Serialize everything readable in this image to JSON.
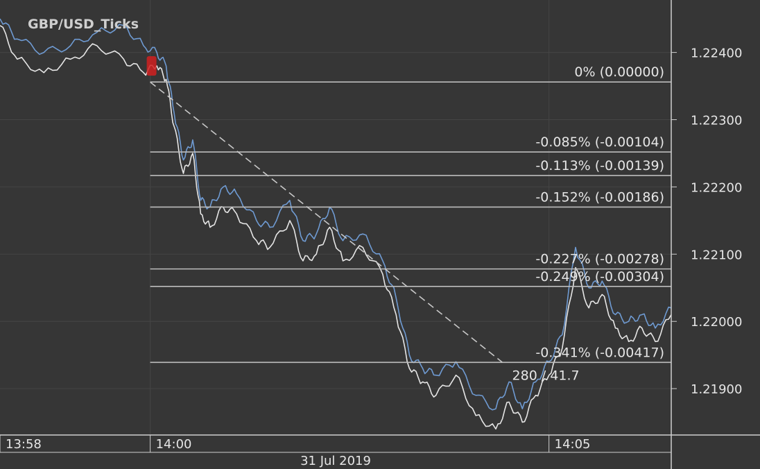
{
  "chart_data": {
    "type": "line",
    "title": "GBP/USD_Ticks",
    "date_label": "31 Jul 2019",
    "x_ticks": [
      "13:58",
      "14:00",
      "14:05"
    ],
    "y_ticks": [
      1.224,
      1.223,
      1.222,
      1.221,
      1.22,
      1.219
    ],
    "y_tick_labels": [
      "1.22400",
      "1.22300",
      "1.22200",
      "1.22100",
      "1.22000",
      "1.21900"
    ],
    "ylim": [
      1.21831,
      1.22478
    ],
    "xlim": [
      "13:58:07",
      "14:06:32"
    ],
    "grid": true,
    "series": [
      {
        "color": "#6f9bd3",
        "x": [
          "13:58:07",
          "13:58:20",
          "13:58:40",
          "13:59:00",
          "13:59:20",
          "13:59:40",
          "13:59:55",
          "14:00:05",
          "14:00:12",
          "14:00:18",
          "14:00:25",
          "14:00:32",
          "14:00:38",
          "14:00:45",
          "14:00:55",
          "14:01:05",
          "14:01:20",
          "14:01:30",
          "14:01:45",
          "14:01:55",
          "14:02:05",
          "14:02:15",
          "14:02:25",
          "14:02:40",
          "14:02:55",
          "14:03:05",
          "14:03:15",
          "14:03:25",
          "14:03:35",
          "14:03:50",
          "14:04:05",
          "14:04:20",
          "14:04:30",
          "14:04:40",
          "14:04:50",
          "14:05:00",
          "14:05:10",
          "14:05:20",
          "14:05:30",
          "14:05:40",
          "14:05:50",
          "14:06:00",
          "14:06:10",
          "14:06:20",
          "14:06:32"
        ],
        "y": [
          1.2245,
          1.2242,
          1.224,
          1.2241,
          1.2243,
          1.2244,
          1.2241,
          1.224,
          1.2238,
          1.2231,
          1.2224,
          1.2227,
          1.2218,
          1.2217,
          1.222,
          1.2219,
          1.2215,
          1.2214,
          1.2218,
          1.2212,
          1.2213,
          1.2217,
          1.2212,
          1.2213,
          1.2209,
          1.22035,
          1.2195,
          1.2193,
          1.2192,
          1.2194,
          1.2189,
          1.2187,
          1.2191,
          1.2187,
          1.2191,
          1.2194,
          1.2198,
          1.2211,
          1.2205,
          1.2206,
          1.2201,
          1.22,
          1.2201,
          1.2199,
          1.2202
        ]
      },
      {
        "color": "#e6e6e6",
        "x": [
          "13:58:07",
          "13:58:20",
          "13:58:40",
          "13:59:00",
          "13:59:20",
          "13:59:40",
          "13:59:55",
          "14:00:05",
          "14:00:12",
          "14:00:18",
          "14:00:25",
          "14:00:32",
          "14:00:38",
          "14:00:45",
          "14:00:55",
          "14:01:05",
          "14:01:20",
          "14:01:30",
          "14:01:45",
          "14:01:55",
          "14:02:05",
          "14:02:15",
          "14:02:25",
          "14:02:40",
          "14:02:55",
          "14:03:05",
          "14:03:15",
          "14:03:25",
          "14:03:35",
          "14:03:50",
          "14:04:05",
          "14:04:20",
          "14:04:30",
          "14:04:40",
          "14:04:50",
          "14:05:00",
          "14:05:10",
          "14:05:20",
          "14:05:30",
          "14:05:40",
          "14:05:50",
          "14:06:00",
          "14:06:10",
          "14:06:20",
          "14:06:32"
        ],
        "y": [
          1.2244,
          1.2239,
          1.2237,
          1.2239,
          1.2241,
          1.2239,
          1.2237,
          1.2238,
          1.2236,
          1.2229,
          1.2222,
          1.2225,
          1.2216,
          1.2214,
          1.2217,
          1.2216,
          1.2212,
          1.2211,
          1.2215,
          1.2209,
          1.221,
          1.2214,
          1.2209,
          1.2211,
          1.2207,
          1.2201,
          1.2193,
          1.2191,
          1.2189,
          1.2192,
          1.2186,
          1.2184,
          1.2188,
          1.2185,
          1.2189,
          1.2192,
          1.2196,
          1.2208,
          1.2202,
          1.2204,
          1.2199,
          1.2197,
          1.2199,
          1.2197,
          1.2201
        ]
      }
    ],
    "fibonacci": {
      "levels": [
        {
          "value": 1.22356,
          "label": "0% (0.00000)"
        },
        {
          "value": 1.22252,
          "label": "-0.085% (-0.00104)"
        },
        {
          "value": 1.22217,
          "label": "-0.113% (-0.00139)"
        },
        {
          "value": 1.2217,
          "label": "-0.152% (-0.00186)"
        },
        {
          "value": 1.22078,
          "label": "-0.227% (-0.00278)"
        },
        {
          "value": 1.22052,
          "label": "-0.249% (-0.00304)"
        },
        {
          "value": 1.21939,
          "label": "-0.341% (-0.00417)"
        }
      ],
      "start": {
        "x": "14:00:00",
        "y": 1.22356
      },
      "end": {
        "x": "14:04:25",
        "y": 1.21939
      },
      "readout": "280 / 41.7"
    },
    "marker": {
      "x": "14:00:00",
      "y": 1.2238,
      "color": "#d02020"
    }
  }
}
